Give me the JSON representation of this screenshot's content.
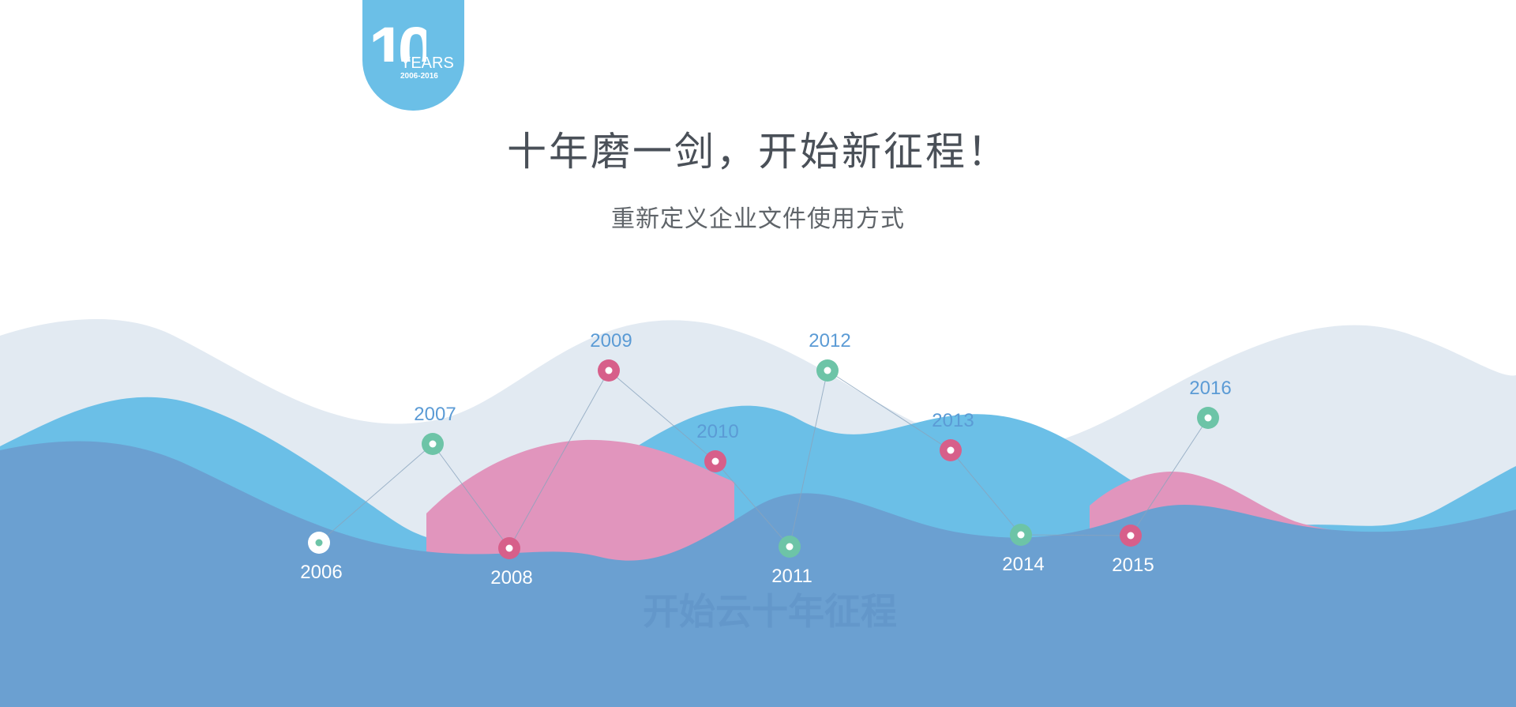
{
  "badge": {
    "number": "10",
    "word": "YEARS",
    "range": "2006-2016"
  },
  "title": "十年磨一剑，开始新征程！",
  "subtitle": "重新定义企业文件使用方式",
  "watermark": "开始云十年征程",
  "timeline": [
    {
      "year": "2006",
      "color": "white"
    },
    {
      "year": "2007",
      "color": "green"
    },
    {
      "year": "2008",
      "color": "pink"
    },
    {
      "year": "2009",
      "color": "pink"
    },
    {
      "year": "2010",
      "color": "pink"
    },
    {
      "year": "2011",
      "color": "green"
    },
    {
      "year": "2012",
      "color": "green"
    },
    {
      "year": "2013",
      "color": "pink"
    },
    {
      "year": "2014",
      "color": "green"
    },
    {
      "year": "2015",
      "color": "pink"
    },
    {
      "year": "2016",
      "color": "green"
    }
  ],
  "colors": {
    "badge": "#6bbfe7",
    "wave_back": "#e2eaf2",
    "wave_cyan": "#6bbfe7",
    "wave_pink": "#e195bd",
    "wave_front": "#6ba0d1",
    "dot_pink": "#d75f8a",
    "dot_green": "#6dc4a7",
    "dot_white": "#ffffff",
    "year_above": "#5b9bd5",
    "year_below": "#ffffff",
    "title": "#4a5058",
    "subtitle": "#5f6469"
  }
}
